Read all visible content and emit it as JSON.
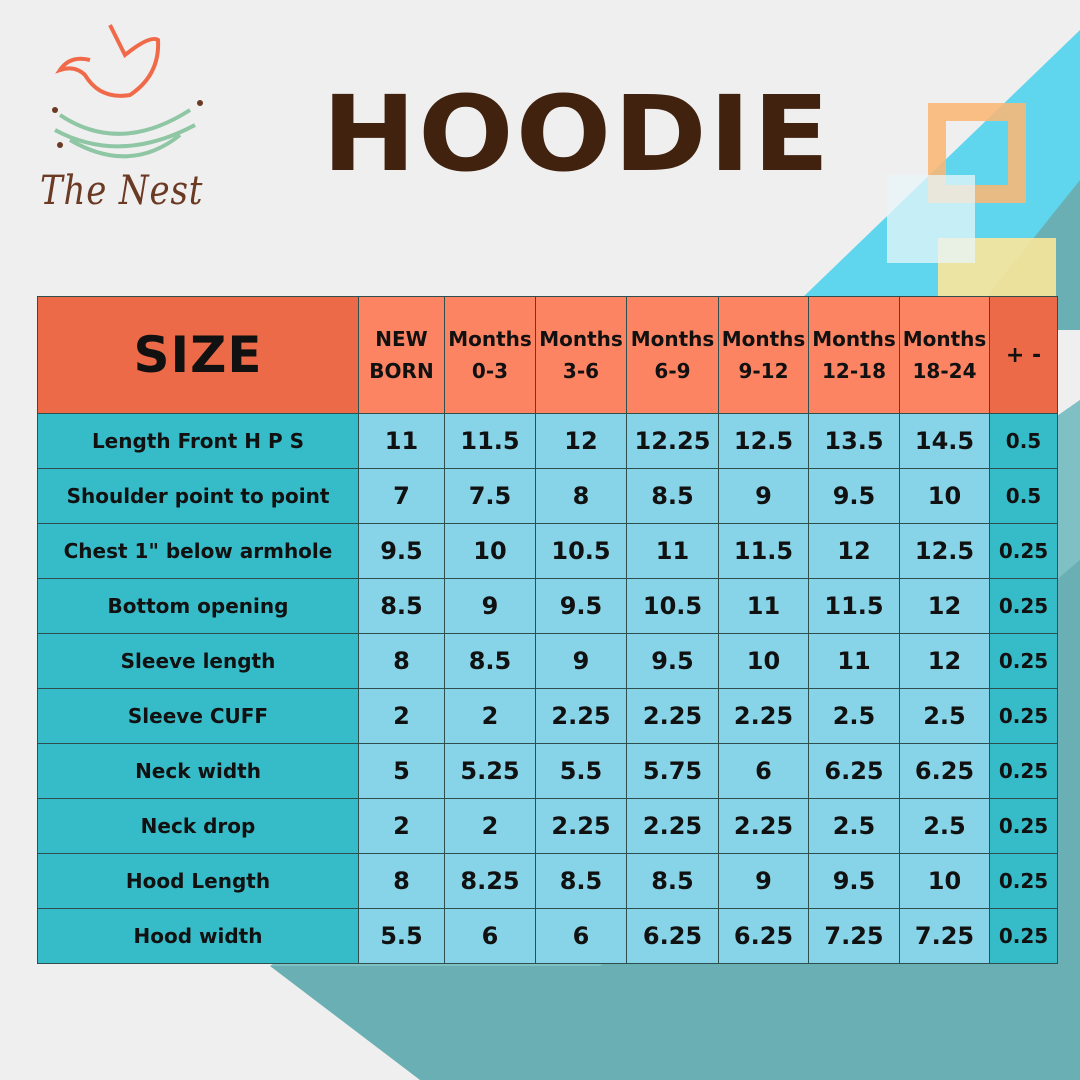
{
  "brand": {
    "name": "The Nest"
  },
  "title": "HOODIE",
  "colors": {
    "title": "#40220f",
    "size_header": "#ec6a47",
    "col_header": "#fd8462",
    "row_label": "#36bcc8",
    "cell": "#87d4e8"
  },
  "table": {
    "corner": "SIZE",
    "columns": [
      [
        "NEW",
        "BORN"
      ],
      [
        "Months",
        "0-3"
      ],
      [
        "Months",
        "3-6"
      ],
      [
        "Months",
        "6-9"
      ],
      [
        "Months",
        "9-12"
      ],
      [
        "Months",
        "12-18"
      ],
      [
        "Months",
        "18-24"
      ]
    ],
    "tolerance_header": "+ -",
    "rows": [
      {
        "label": "Length Front H P S",
        "values": [
          "11",
          "11.5",
          "12",
          "12.25",
          "12.5",
          "13.5",
          "14.5"
        ],
        "tol": "0.5"
      },
      {
        "label": "Shoulder point to point",
        "values": [
          "7",
          "7.5",
          "8",
          "8.5",
          "9",
          "9.5",
          "10"
        ],
        "tol": "0.5"
      },
      {
        "label": "Chest 1\" below armhole",
        "values": [
          "9.5",
          "10",
          "10.5",
          "11",
          "11.5",
          "12",
          "12.5"
        ],
        "tol": "0.25"
      },
      {
        "label": "Bottom opening",
        "values": [
          "8.5",
          "9",
          "9.5",
          "10.5",
          "11",
          "11.5",
          "12"
        ],
        "tol": "0.25"
      },
      {
        "label": "Sleeve length",
        "values": [
          "8",
          "8.5",
          "9",
          "9.5",
          "10",
          "11",
          "12"
        ],
        "tol": "0.25"
      },
      {
        "label": "Sleeve CUFF",
        "values": [
          "2",
          "2",
          "2.25",
          "2.25",
          "2.25",
          "2.5",
          "2.5"
        ],
        "tol": "0.25"
      },
      {
        "label": "Neck width",
        "values": [
          "5",
          "5.25",
          "5.5",
          "5.75",
          "6",
          "6.25",
          "6.25"
        ],
        "tol": "0.25"
      },
      {
        "label": "Neck drop",
        "values": [
          "2",
          "2",
          "2.25",
          "2.25",
          "2.25",
          "2.5",
          "2.5"
        ],
        "tol": "0.25"
      },
      {
        "label": "Hood Length",
        "values": [
          "8",
          "8.25",
          "8.5",
          "8.5",
          "9",
          "9.5",
          "10"
        ],
        "tol": "0.25"
      },
      {
        "label": "Hood width",
        "values": [
          "5.5",
          "6",
          "6",
          "6.25",
          "6.25",
          "7.25",
          "7.25"
        ],
        "tol": "0.25"
      }
    ]
  }
}
